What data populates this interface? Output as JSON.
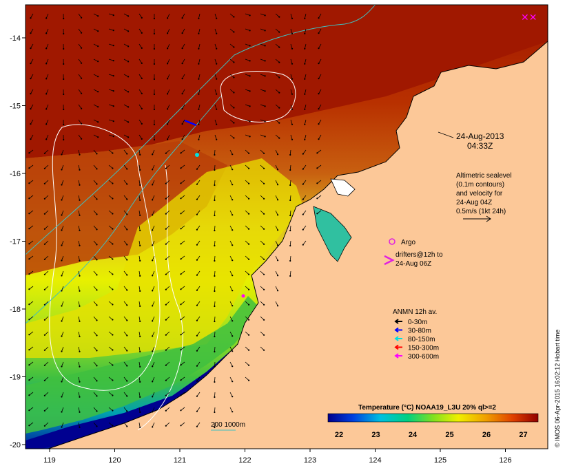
{
  "date_box": {
    "date": "24-Aug-2013",
    "time": "04:33Z"
  },
  "altimetry_note": {
    "lines": [
      "Altimetric sealevel",
      "(0.1m contours)",
      "and velocity for",
      "24-Aug 04Z",
      "0.5m/s (1kt 24h)"
    ]
  },
  "drifters_legend": {
    "argo_label": "Argo",
    "drifters_lines": [
      "drifters@12h to",
      "24-Aug 06Z"
    ],
    "argo_color": "#e020e0"
  },
  "anmn_legend": {
    "title": "ANMN 12h av.",
    "items": [
      {
        "label": "0-30m",
        "color": "#000000"
      },
      {
        "label": "30-80m",
        "color": "#0000ff"
      },
      {
        "label": "80-150m",
        "color": "#00e0e0"
      },
      {
        "label": "150-300m",
        "color": "#ff0000"
      },
      {
        "label": "300-600m",
        "color": "#ff00ff"
      }
    ]
  },
  "depth_legend": {
    "label": "200  1000m",
    "color": "#40c0c0"
  },
  "colorbar": {
    "title": "Temperature (°C) NOAA19_L3U 20% ql>=2",
    "ticks": [
      "22",
      "23",
      "24",
      "25",
      "26",
      "27"
    ]
  },
  "axes": {
    "x_ticks": [
      "119",
      "120",
      "121",
      "122",
      "123",
      "124",
      "125",
      "126"
    ],
    "y_ticks": [
      "-14",
      "-15",
      "-16",
      "-17",
      "-18",
      "-19",
      "-20"
    ]
  },
  "credit": "© IMOS 06-Apr-2015 16:02:12 Hobart time",
  "colors": {
    "land": "#fcc898",
    "warm": "#a01800",
    "cool": "#000090"
  }
}
